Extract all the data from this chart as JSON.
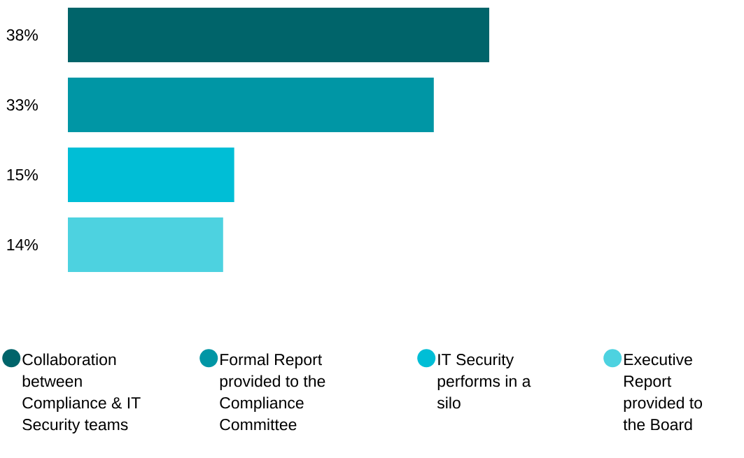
{
  "chart_data": {
    "type": "bar",
    "orientation": "horizontal",
    "categories": [
      null
    ],
    "series": [
      {
        "name": "Collaboration between Compliance & IT Security teams",
        "color": "#00646a",
        "values": [
          38
        ],
        "value_labels": [
          "38%"
        ]
      },
      {
        "name": "Formal Report provided to the Compliance Committee",
        "color": "#0096a5",
        "values": [
          33
        ],
        "value_labels": [
          "33%"
        ]
      },
      {
        "name": "IT Security performs in a silo",
        "color": "#00bed6",
        "values": [
          15
        ],
        "value_labels": [
          "15%"
        ]
      },
      {
        "name": "Executive Report provided to the Board",
        "color": "#4dd2e0",
        "values": [
          14
        ],
        "value_labels": [
          "14%"
        ]
      }
    ],
    "legend": "bottom"
  }
}
